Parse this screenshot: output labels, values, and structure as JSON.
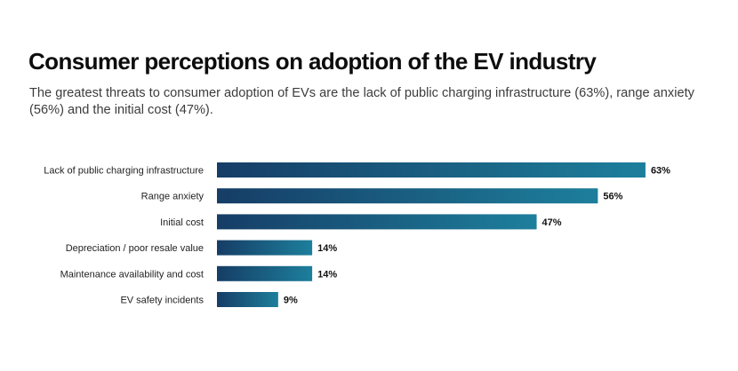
{
  "chart_data": {
    "type": "bar",
    "orientation": "horizontal",
    "title": "Consumer perceptions on adoption of the EV industry",
    "subtitle": "The greatest threats to consumer adoption of EVs are the lack of public charging infrastructure (63%), range anxiety (56%) and the initial cost (47%).",
    "categories": [
      "Lack of public charging infrastructure",
      "Range anxiety",
      "Initial cost",
      "Depreciation / poor resale value",
      "Maintenance availability and cost",
      "EV safety incidents"
    ],
    "values": [
      63,
      56,
      47,
      14,
      14,
      9
    ],
    "value_labels": [
      "63%",
      "56%",
      "47%",
      "14%",
      "14%",
      "9%"
    ],
    "grid": false,
    "legend": "none",
    "colors": {
      "bar_start": "#163d66",
      "bar_end": "#1d7f9c"
    }
  }
}
